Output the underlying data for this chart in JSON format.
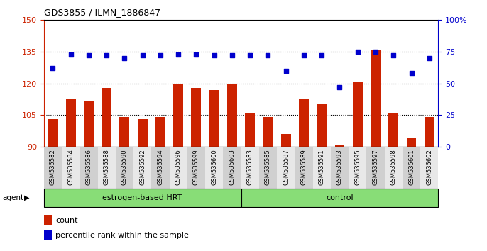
{
  "title": "GDS3855 / ILMN_1886847",
  "samples": [
    "GSM535582",
    "GSM535584",
    "GSM535586",
    "GSM535588",
    "GSM535590",
    "GSM535592",
    "GSM535594",
    "GSM535596",
    "GSM535599",
    "GSM535600",
    "GSM535603",
    "GSM535583",
    "GSM535585",
    "GSM535587",
    "GSM535589",
    "GSM535591",
    "GSM535593",
    "GSM535595",
    "GSM535597",
    "GSM535598",
    "GSM535601",
    "GSM535602"
  ],
  "counts": [
    103,
    113,
    112,
    118,
    104,
    103,
    104,
    120,
    118,
    117,
    120,
    106,
    104,
    96,
    113,
    110,
    91,
    121,
    136,
    106,
    94,
    104
  ],
  "percentiles": [
    62,
    73,
    72,
    72,
    70,
    72,
    72,
    73,
    73,
    72,
    72,
    72,
    72,
    60,
    72,
    72,
    47,
    75,
    75,
    72,
    58,
    70
  ],
  "groups": [
    "estrogen-based HRT",
    "estrogen-based HRT",
    "estrogen-based HRT",
    "estrogen-based HRT",
    "estrogen-based HRT",
    "estrogen-based HRT",
    "estrogen-based HRT",
    "estrogen-based HRT",
    "estrogen-based HRT",
    "estrogen-based HRT",
    "estrogen-based HRT",
    "control",
    "control",
    "control",
    "control",
    "control",
    "control",
    "control",
    "control",
    "control",
    "control",
    "control"
  ],
  "bar_color": "#cc2200",
  "dot_color": "#0000cc",
  "left_ylim": [
    90,
    150
  ],
  "left_yticks": [
    90,
    105,
    120,
    135,
    150
  ],
  "right_ylim": [
    0,
    100
  ],
  "right_yticks": [
    0,
    25,
    50,
    75,
    100
  ],
  "group_label": "agent",
  "xtick_bg_even": "#d0d0d0",
  "xtick_bg_odd": "#e8e8e8"
}
